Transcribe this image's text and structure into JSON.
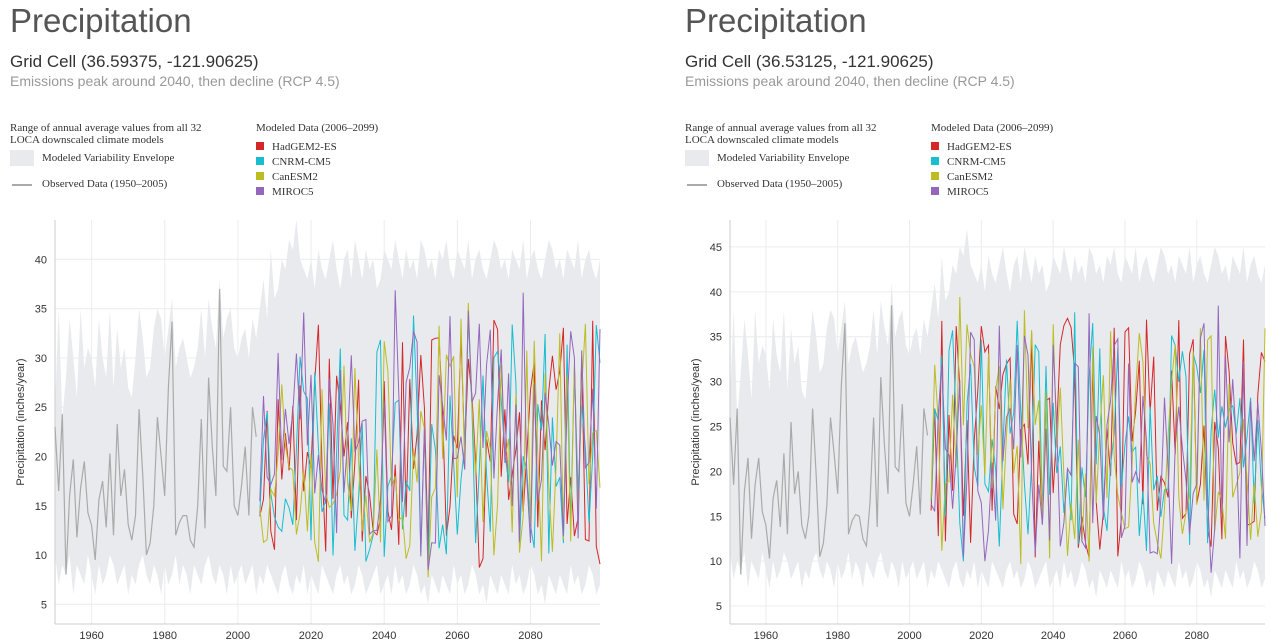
{
  "chart_data": [
    {
      "type": "line",
      "title": "Precipitation",
      "subtitle": "Grid Cell (36.59375, -121.90625)",
      "description": "Emissions peak around 2040, then decline (RCP 4.5)",
      "ylabel": "Precipitation (inches/year)",
      "xlim": [
        1950,
        2099
      ],
      "ylim": [
        3,
        44
      ],
      "xticks": [
        "1960",
        "1980",
        "2000",
        "2020",
        "2040",
        "2060",
        "2080"
      ],
      "yticks": [
        "5",
        "10",
        "15",
        "20",
        "25",
        "30",
        "35",
        "40"
      ],
      "observed": {
        "name": "Observed Data (1950–2005)",
        "color": "#aaaaaa",
        "x_start": 1950,
        "values": [
          23,
          16.5,
          24.3,
          8,
          16,
          19.7,
          11.8,
          16.8,
          19.5,
          14.3,
          13,
          9.5,
          15.6,
          17.5,
          12.8,
          20.3,
          12,
          23.3,
          16,
          18.7,
          13.1,
          11.5,
          14,
          24.8,
          18,
          10,
          11.2,
          15,
          24,
          20,
          16,
          27,
          33.7,
          12,
          13.3,
          14,
          14,
          11.5,
          10.8,
          15,
          23.8,
          12.7,
          28,
          21,
          16,
          37,
          19,
          18.5,
          25,
          15,
          14,
          17,
          21,
          14,
          25,
          22
        ]
      },
      "envelope": {
        "name": "Modeled Variability Envelope",
        "color": "#e8eaee",
        "x_start": 1950,
        "step": 1,
        "upper": [
          25,
          35,
          24,
          28,
          34,
          30,
          26,
          35,
          29,
          31,
          30,
          27,
          34,
          30,
          28,
          35,
          27,
          33,
          29,
          31,
          27,
          26,
          30,
          35,
          32,
          28,
          29,
          33,
          35,
          34,
          30,
          33,
          36,
          29,
          31,
          32,
          30,
          28,
          29,
          31,
          35,
          30,
          36,
          33,
          31,
          38,
          32,
          34,
          35,
          31,
          30,
          32,
          33,
          30,
          34,
          32,
          35,
          38,
          34,
          41,
          36,
          37,
          40,
          39,
          42,
          41,
          44,
          40,
          39,
          38,
          40,
          37,
          41,
          39,
          38,
          40,
          42,
          39,
          37,
          40,
          41,
          38,
          42,
          40,
          38,
          41,
          39,
          40,
          37,
          38,
          41,
          40,
          39,
          42,
          40,
          38,
          41,
          39,
          40,
          38,
          42,
          41,
          39,
          40,
          38,
          41,
          40,
          42,
          39,
          38,
          41,
          40,
          39,
          42,
          38,
          40,
          41,
          39,
          38,
          40,
          42,
          41,
          39,
          40,
          38,
          41,
          40,
          39,
          42,
          38,
          40,
          41,
          39,
          38,
          40,
          42,
          41,
          39,
          40,
          38,
          41,
          40,
          39,
          42,
          38,
          40,
          41,
          39,
          38,
          40
        ],
        "lower": [
          10,
          7,
          9,
          8,
          10,
          6,
          9,
          8,
          7,
          10,
          8,
          6,
          9,
          7,
          8,
          10,
          9,
          7,
          8,
          9,
          6,
          8,
          7,
          9,
          10,
          8,
          7,
          9,
          8,
          6,
          9,
          7,
          8,
          10,
          7,
          9,
          8,
          6,
          9,
          8,
          7,
          9,
          10,
          8,
          7,
          9,
          8,
          6,
          9,
          7,
          8,
          9,
          7,
          8,
          9,
          6,
          8,
          7,
          9,
          8,
          7,
          6,
          8,
          9,
          7,
          6,
          8,
          7,
          9,
          6,
          8,
          7,
          6,
          9,
          8,
          7,
          6,
          8,
          9,
          7,
          8,
          6,
          7,
          9,
          8,
          6,
          7,
          8,
          9,
          6,
          7,
          8,
          6,
          9,
          7,
          8,
          6,
          7,
          9,
          8,
          6,
          7,
          5,
          8,
          7,
          6,
          8,
          7,
          6,
          9,
          7,
          8,
          6,
          7,
          9,
          8,
          6,
          7,
          5,
          8,
          7,
          6,
          8,
          7,
          6,
          9,
          7,
          8,
          6,
          7,
          9,
          8,
          6,
          7,
          5,
          8,
          7,
          6,
          8,
          7,
          6,
          9,
          7,
          8,
          6,
          7,
          9,
          8,
          6,
          7
        ]
      },
      "series": [
        {
          "name": "HadGEM2-ES",
          "color": "#d62728",
          "x_start": 2006,
          "seed": 11
        },
        {
          "name": "CNRM-CM5",
          "color": "#17becf",
          "x_start": 2006,
          "seed": 23
        },
        {
          "name": "CanESM2",
          "color": "#bcbd22",
          "x_start": 2006,
          "seed": 37
        },
        {
          "name": "MIROC5",
          "color": "#9467bd",
          "x_start": 2006,
          "seed": 51
        }
      ]
    },
    {
      "type": "line",
      "title": "Precipitation",
      "subtitle": "Grid Cell (36.53125, -121.90625)",
      "description": "Emissions peak around 2040, then decline (RCP 4.5)",
      "ylabel": "Precipitation (inches/year)",
      "xlim": [
        1950,
        2099
      ],
      "ylim": [
        3,
        48
      ],
      "xticks": [
        "1960",
        "1980",
        "2000",
        "2020",
        "2040",
        "2060",
        "2080"
      ],
      "yticks": [
        "5",
        "10",
        "15",
        "20",
        "25",
        "30",
        "35",
        "40",
        "45"
      ],
      "observed": {
        "name": "Observed Data (1950–2005)",
        "color": "#aaaaaa",
        "x_start": 1950,
        "values": [
          26,
          18.5,
          27,
          8.5,
          17.8,
          21.5,
          12.5,
          18.5,
          21.5,
          15.5,
          14,
          10.3,
          17,
          19,
          13.8,
          22,
          13,
          25.5,
          17.5,
          20,
          14,
          12.5,
          15.2,
          27,
          19.5,
          10.5,
          12,
          16.3,
          26,
          22,
          17.5,
          29.5,
          36.5,
          13,
          14.5,
          15.2,
          15,
          12.5,
          11.7,
          16.5,
          26,
          13.8,
          30.5,
          23,
          17.5,
          38.5,
          20.5,
          20,
          27.5,
          16.5,
          15,
          18.5,
          22.8,
          15.2,
          27,
          24
        ]
      },
      "envelope": {
        "name": "Modeled Variability Envelope",
        "color": "#e8eaee",
        "x_start": 1950,
        "step": 1,
        "upper": [
          28,
          38,
          26,
          31,
          37,
          33,
          28,
          38,
          32,
          34,
          33,
          29,
          37,
          33,
          31,
          38,
          29,
          36,
          32,
          34,
          29,
          28,
          33,
          38,
          35,
          31,
          32,
          36,
          38,
          37,
          33,
          36,
          39,
          32,
          34,
          35,
          33,
          31,
          32,
          34,
          38,
          33,
          39,
          36,
          34,
          41,
          35,
          37,
          38,
          34,
          33,
          35,
          36,
          33,
          37,
          35,
          38,
          41,
          37,
          44,
          39,
          40,
          43,
          42,
          45,
          44,
          47,
          43,
          42,
          41,
          43,
          40,
          44,
          42,
          41,
          43,
          45,
          42,
          40,
          43,
          44,
          41,
          45,
          43,
          41,
          44,
          42,
          43,
          40,
          41,
          44,
          43,
          42,
          45,
          43,
          41,
          44,
          42,
          43,
          41,
          45,
          44,
          42,
          43,
          41,
          44,
          43,
          45,
          42,
          41,
          44,
          43,
          42,
          45,
          41,
          43,
          44,
          42,
          41,
          43,
          45,
          44,
          42,
          43,
          41,
          44,
          43,
          42,
          45,
          41,
          43,
          44,
          42,
          41,
          43,
          45,
          44,
          42,
          43,
          41,
          44,
          43,
          42,
          45,
          41,
          43,
          44,
          42,
          41,
          43
        ],
        "lower": [
          11,
          8,
          10,
          9,
          11,
          7,
          10,
          9,
          8,
          11,
          9,
          7,
          10,
          8,
          9,
          11,
          10,
          8,
          9,
          10,
          7,
          9,
          8,
          10,
          11,
          9,
          8,
          10,
          9,
          7,
          10,
          8,
          9,
          11,
          8,
          10,
          9,
          7,
          10,
          9,
          8,
          10,
          11,
          9,
          8,
          10,
          9,
          7,
          10,
          8,
          9,
          10,
          8,
          9,
          10,
          7,
          9,
          8,
          10,
          9,
          8,
          7,
          9,
          10,
          8,
          7,
          9,
          8,
          10,
          7,
          9,
          8,
          7,
          10,
          9,
          8,
          7,
          9,
          10,
          8,
          9,
          7,
          8,
          10,
          9,
          7,
          8,
          9,
          10,
          7,
          8,
          9,
          7,
          10,
          8,
          9,
          7,
          8,
          10,
          9,
          7,
          8,
          6,
          9,
          8,
          7,
          9,
          8,
          7,
          10,
          8,
          9,
          7,
          8,
          10,
          9,
          7,
          8,
          6,
          9,
          8,
          7,
          9,
          8,
          7,
          10,
          8,
          9,
          7,
          8,
          10,
          9,
          7,
          8,
          6,
          9,
          8,
          7,
          9,
          8,
          7,
          10,
          8,
          9,
          7,
          8,
          10,
          9,
          7,
          8
        ]
      },
      "series": [
        {
          "name": "HadGEM2-ES",
          "color": "#d62728",
          "x_start": 2006,
          "seed": 13
        },
        {
          "name": "CNRM-CM5",
          "color": "#17becf",
          "x_start": 2006,
          "seed": 29
        },
        {
          "name": "CanESM2",
          "color": "#bcbd22",
          "x_start": 2006,
          "seed": 41
        },
        {
          "name": "MIROC5",
          "color": "#9467bd",
          "x_start": 2006,
          "seed": 59
        }
      ]
    }
  ],
  "legend": {
    "range_text": "Range of annual average values from all 32 LOCA downscaled climate models",
    "modeled_title": "Modeled Data (2006–2099)"
  }
}
